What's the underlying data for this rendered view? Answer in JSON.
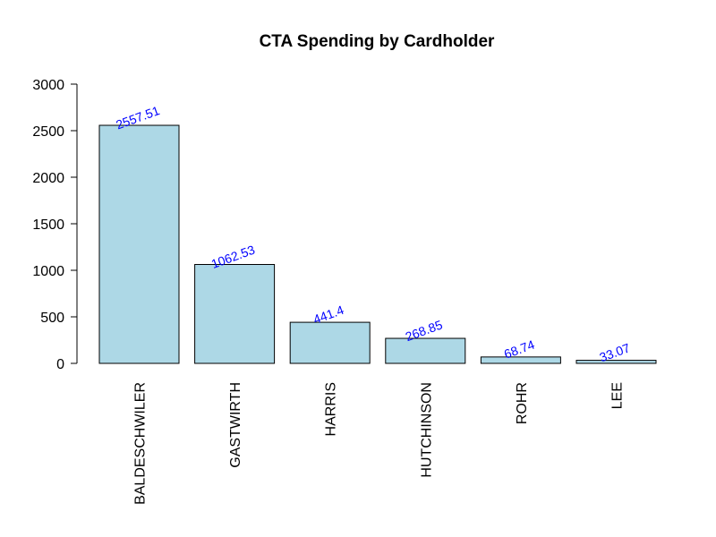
{
  "chart_data": {
    "type": "bar",
    "title": "CTA Spending by Cardholder",
    "xlabel": "",
    "ylabel": "",
    "categories": [
      "BALDESCHWILER",
      "GASTWIRTH",
      "HARRIS",
      "HUTCHINSON",
      "ROHR",
      "LEE"
    ],
    "values": [
      2557.51,
      1062.53,
      441.4,
      268.85,
      68.74,
      33.07
    ],
    "data_labels": [
      "2557.51",
      "1062.53",
      "441.4",
      "268.85",
      "68.74",
      "33.07"
    ],
    "ylim": [
      0,
      3000
    ],
    "yticks": [
      0,
      500,
      1000,
      1500,
      2000,
      2500,
      3000
    ],
    "grid": false,
    "bar_color": "#add8e6",
    "bar_border_color": "#000000",
    "data_label_color": "#0000ff"
  }
}
